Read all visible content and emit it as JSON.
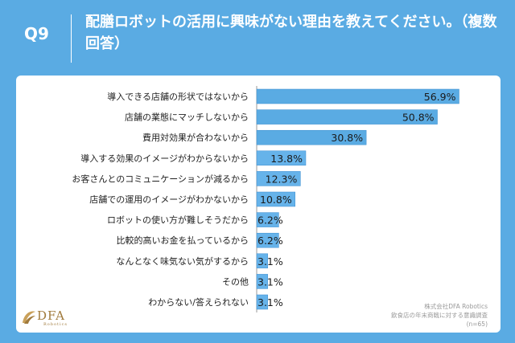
{
  "header": {
    "qlabel": "Q9",
    "title": "配膳ロボットの活用に興味がない理由を教えてください。（複数回答）"
  },
  "colors": {
    "background": "#5aabe3",
    "bar": "#66b3ea",
    "bar_highlight": "#5aabe3",
    "bar_edge": "#3d8ed0"
  },
  "chart_data": {
    "type": "bar",
    "orientation": "horizontal",
    "categories": [
      "導入できる店舗の形状ではないから",
      "店舗の業態にマッチしないから",
      "費用対効果が合わないから",
      "導入する効果のイメージがわからないから",
      "お客さんとのコミュニケーションが減るから",
      "店舗での運用のイメージがわかないから",
      "ロボットの使い方が難しそうだから",
      "比較的高いお金を払っているから",
      "なんとなく味気ない気がするから",
      "その他",
      "わからない/答えられない"
    ],
    "values": [
      56.9,
      50.8,
      30.8,
      13.8,
      12.3,
      10.8,
      6.2,
      6.2,
      3.1,
      3.1,
      3.1
    ],
    "labels": [
      "56.9%",
      "50.8%",
      "30.8%",
      "13.8%",
      "12.3%",
      "10.8%",
      "6.2%",
      "6.2%",
      "3.1%",
      "3.1%",
      "3.1%"
    ],
    "xlim": [
      0,
      60
    ]
  },
  "footer": {
    "line1": "株式会社DFA Robotics",
    "line2": "飲食店の年末商戦に対する意識調査",
    "line3": "(n=65)"
  },
  "logo": {
    "name": "DFA",
    "sub": "Robotics"
  }
}
